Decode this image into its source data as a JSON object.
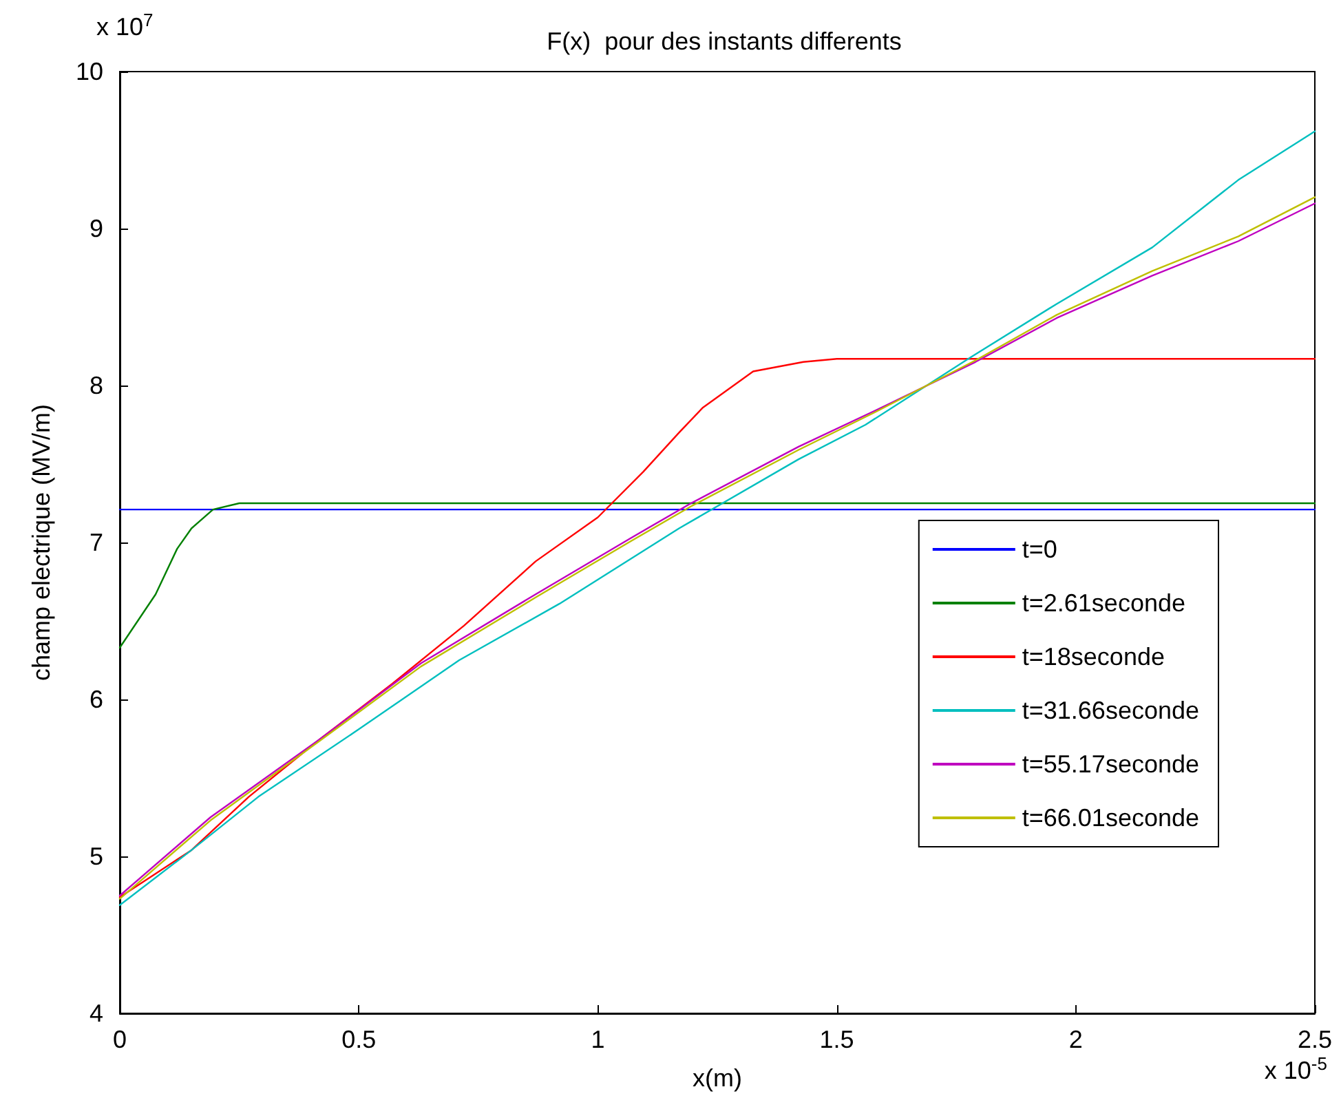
{
  "chart_data": {
    "type": "line",
    "title": "F(x)  pour des instants differents",
    "xlabel": "x(m)",
    "ylabel": "champ electrique (MV/m)",
    "annotations": [
      "x 10$^{7}$",
      "x 10$^{-5}$"
    ],
    "xlim": [
      0,
      2.5
    ],
    "xticks": [
      0,
      0.5,
      1,
      1.5,
      2,
      2.5
    ],
    "ylim": [
      4,
      10
    ],
    "yticks": [
      4,
      5,
      6,
      7,
      8,
      9,
      10
    ],
    "grid": false,
    "legend": "right",
    "marker": "none",
    "line_style": "solid",
    "series": [
      {
        "name": "t=0",
        "color": "#0000ff",
        "x": [
          0,
          2.5
        ],
        "values": [
          7.21,
          7.21
        ]
      },
      {
        "name": "t=2.61seconde",
        "color": "#008000",
        "x": [
          0,
          0.075,
          0.12,
          0.15,
          0.195,
          0.25,
          2.5
        ],
        "values": [
          6.33,
          6.67,
          6.96,
          7.09,
          7.21,
          7.25,
          7.25
        ]
      },
      {
        "name": "t=18seconde",
        "color": "#ff0000",
        "x": [
          0,
          0.15,
          0.27,
          0.42,
          0.57,
          0.72,
          0.87,
          1.0,
          1.095,
          1.17,
          1.22,
          1.325,
          1.43,
          1.5,
          2.5
        ],
        "values": [
          4.74,
          5.04,
          5.38,
          5.75,
          6.1,
          6.47,
          6.88,
          7.16,
          7.45,
          7.7,
          7.86,
          8.09,
          8.15,
          8.17,
          8.17
        ]
      },
      {
        "name": "t=31.66seconde",
        "color": "#00bfbf",
        "x": [
          0,
          0.15,
          0.29,
          0.5,
          0.71,
          0.92,
          1.17,
          1.42,
          1.56,
          1.78,
          1.96,
          2.16,
          2.34,
          2.5
        ],
        "values": [
          4.69,
          5.04,
          5.38,
          5.81,
          6.25,
          6.61,
          7.09,
          7.53,
          7.75,
          8.18,
          8.52,
          8.88,
          9.31,
          9.62
        ]
      },
      {
        "name": "t=55.17seconde",
        "color": "#bf00bf",
        "x": [
          0,
          0.19,
          0.42,
          0.63,
          0.87,
          1.07,
          1.195,
          1.42,
          1.58,
          1.79,
          1.96,
          2.16,
          2.34,
          2.5
        ],
        "values": [
          4.75,
          5.25,
          5.75,
          6.23,
          6.67,
          7.03,
          7.25,
          7.61,
          7.84,
          8.15,
          8.43,
          8.7,
          8.92,
          9.16
        ]
      },
      {
        "name": "t=66.01seconde",
        "color": "#bfbf00",
        "x": [
          0,
          0.19,
          0.42,
          0.63,
          0.87,
          1.07,
          1.195,
          1.42,
          1.58,
          1.79,
          1.96,
          2.16,
          2.34,
          2.5
        ],
        "values": [
          4.73,
          5.23,
          5.74,
          6.21,
          6.65,
          7.01,
          7.23,
          7.59,
          7.83,
          8.16,
          8.45,
          8.73,
          8.95,
          9.2
        ]
      }
    ]
  }
}
